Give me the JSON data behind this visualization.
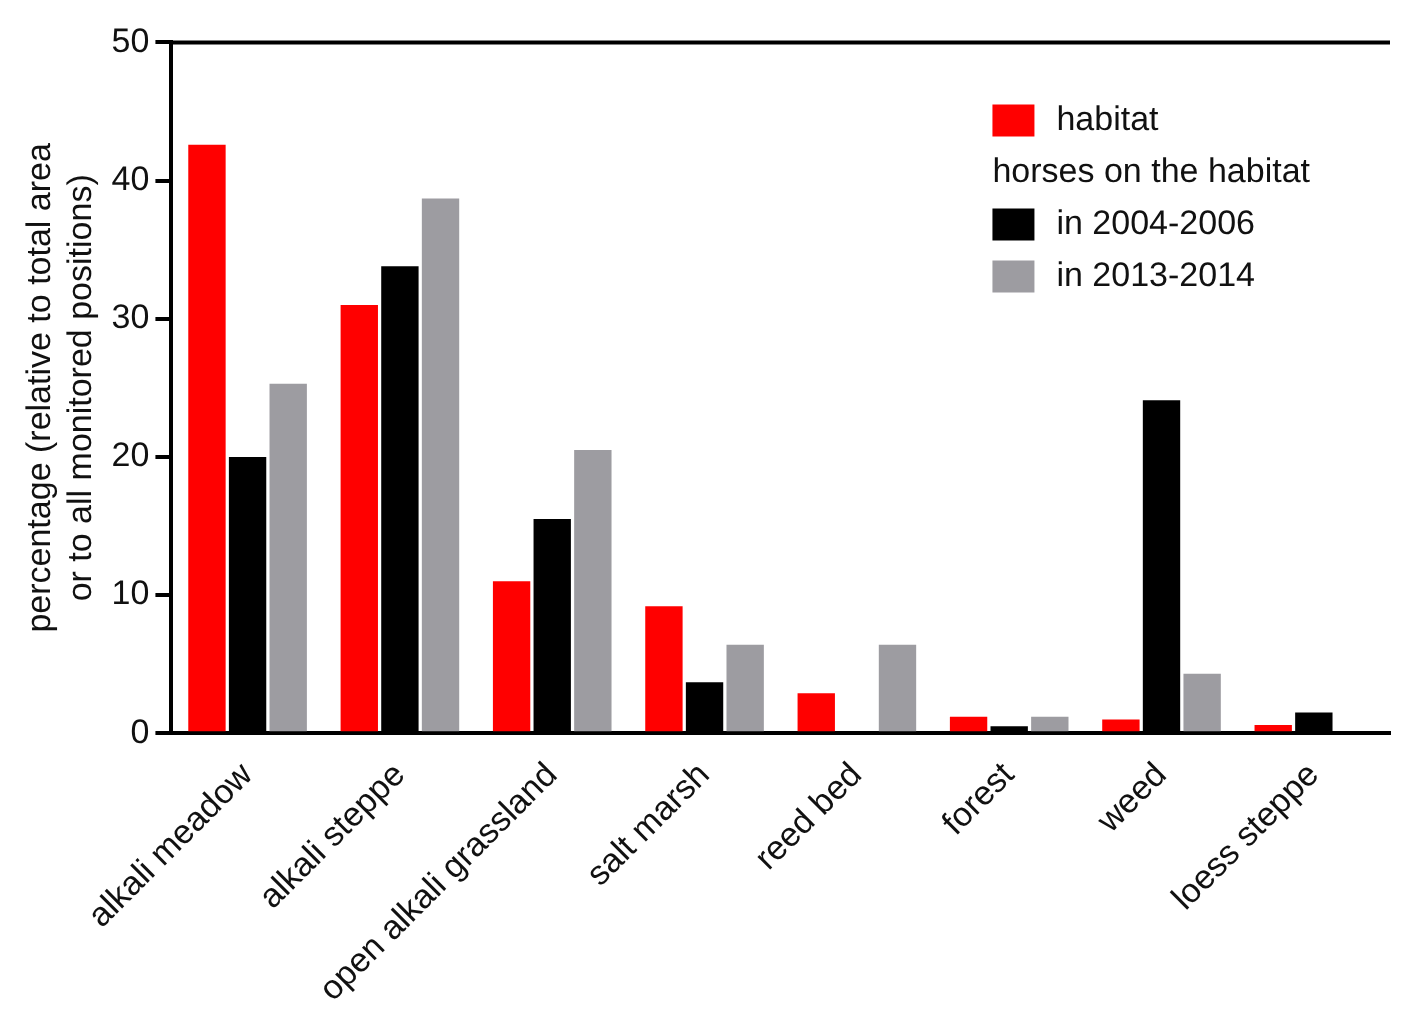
{
  "chart_data": {
    "type": "bar",
    "ylabel": "percentage (relative to total area\nor to all monitored positions)",
    "categories": [
      "alkali meadow",
      "alkali steppe",
      "open alkali grassland",
      "salt marsh",
      "reed bed",
      "forest",
      "weed",
      "loess steppe"
    ],
    "series": [
      {
        "name": "habitat",
        "color": "#ff0000",
        "values": [
          42.6,
          31,
          11,
          9.2,
          2.9,
          1.2,
          1.0,
          0.6
        ]
      },
      {
        "name": "in 2004-2006",
        "color": "#000000",
        "values": [
          20,
          33.8,
          15.5,
          3.7,
          0,
          0.5,
          24.1,
          1.5
        ]
      },
      {
        "name": "in 2013-2014",
        "color": "#9d9ca1",
        "values": [
          25.3,
          38.7,
          20.5,
          6.4,
          6.4,
          1.2,
          4.3,
          0
        ]
      }
    ],
    "legend_title": "horses on the habitat",
    "legend": "top right",
    "grid": false,
    "ylim": [
      0,
      50
    ],
    "yticks": [
      0,
      10,
      20,
      30,
      40,
      50
    ]
  }
}
